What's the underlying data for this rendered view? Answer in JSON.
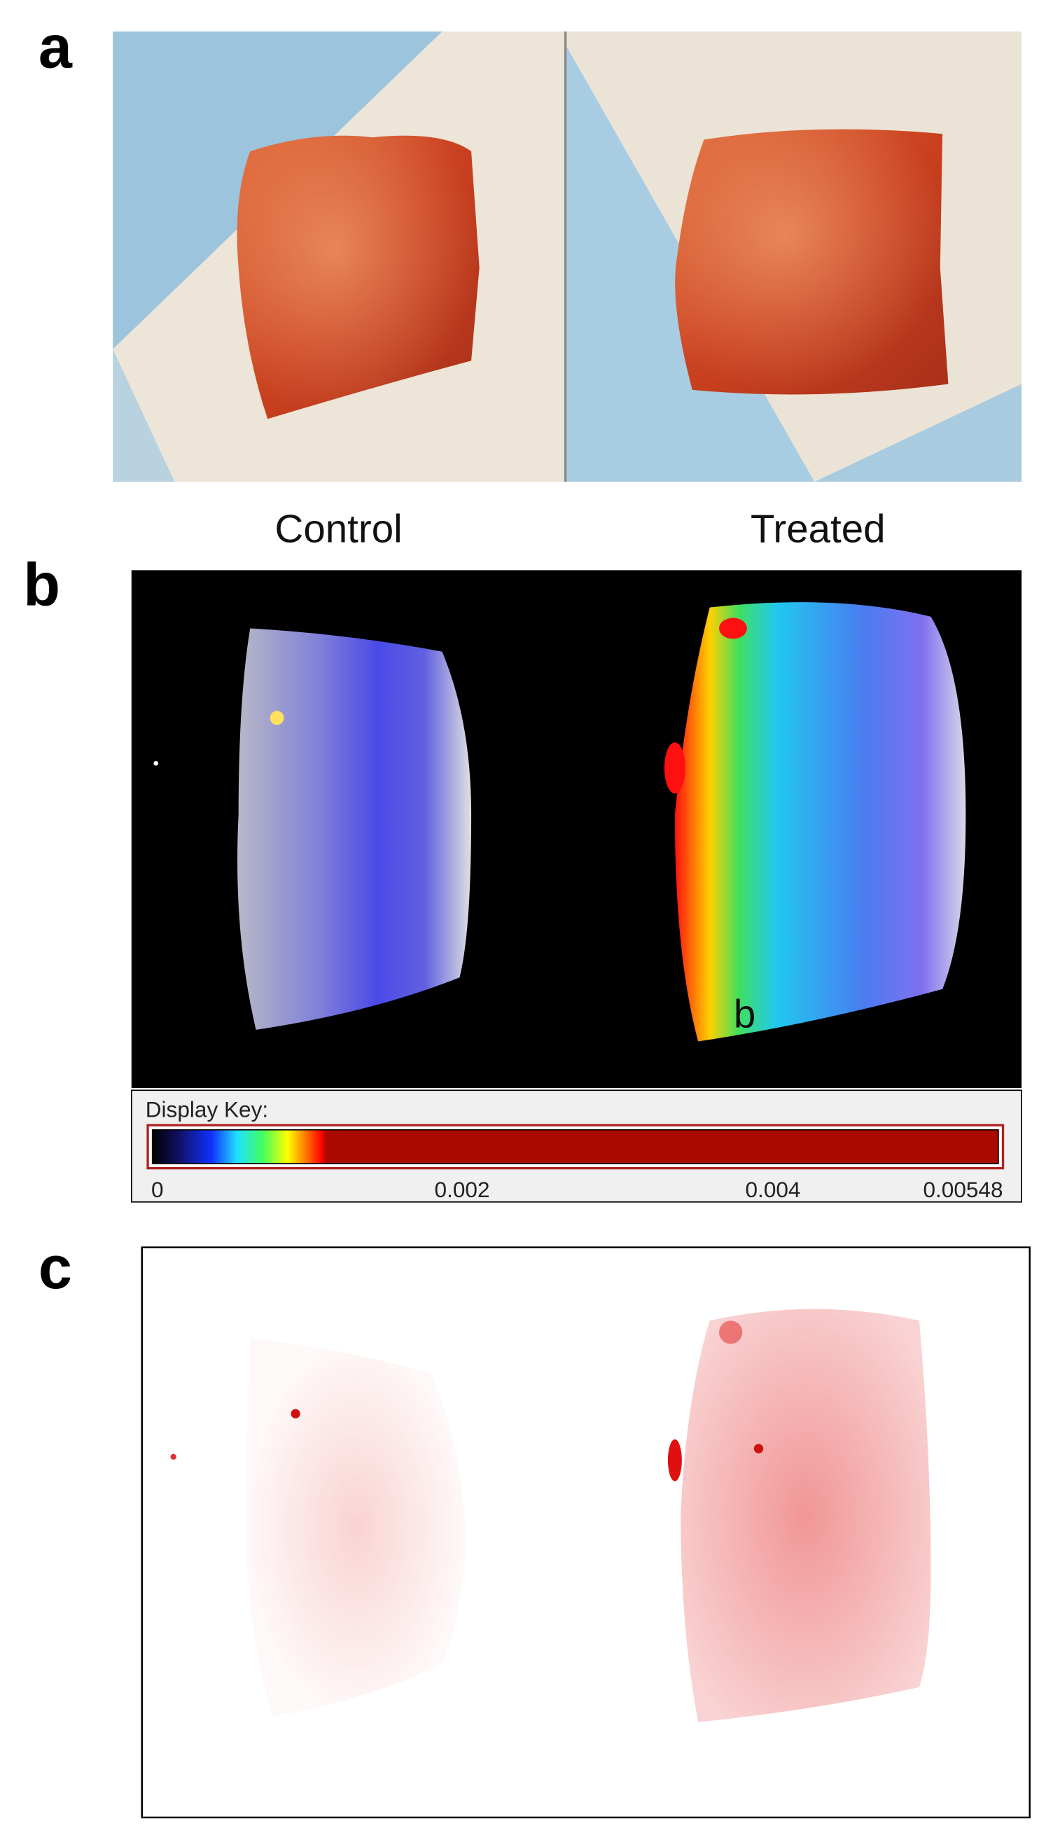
{
  "panels": {
    "a": {
      "label": "a"
    },
    "b": {
      "label": "b",
      "inset_label": "b"
    },
    "c": {
      "label": "c"
    }
  },
  "columns": [
    "Control",
    "Treated"
  ],
  "display_key": {
    "title": "Display Key:",
    "ticks": [
      0,
      0.002,
      0.004,
      0.00548
    ]
  }
}
